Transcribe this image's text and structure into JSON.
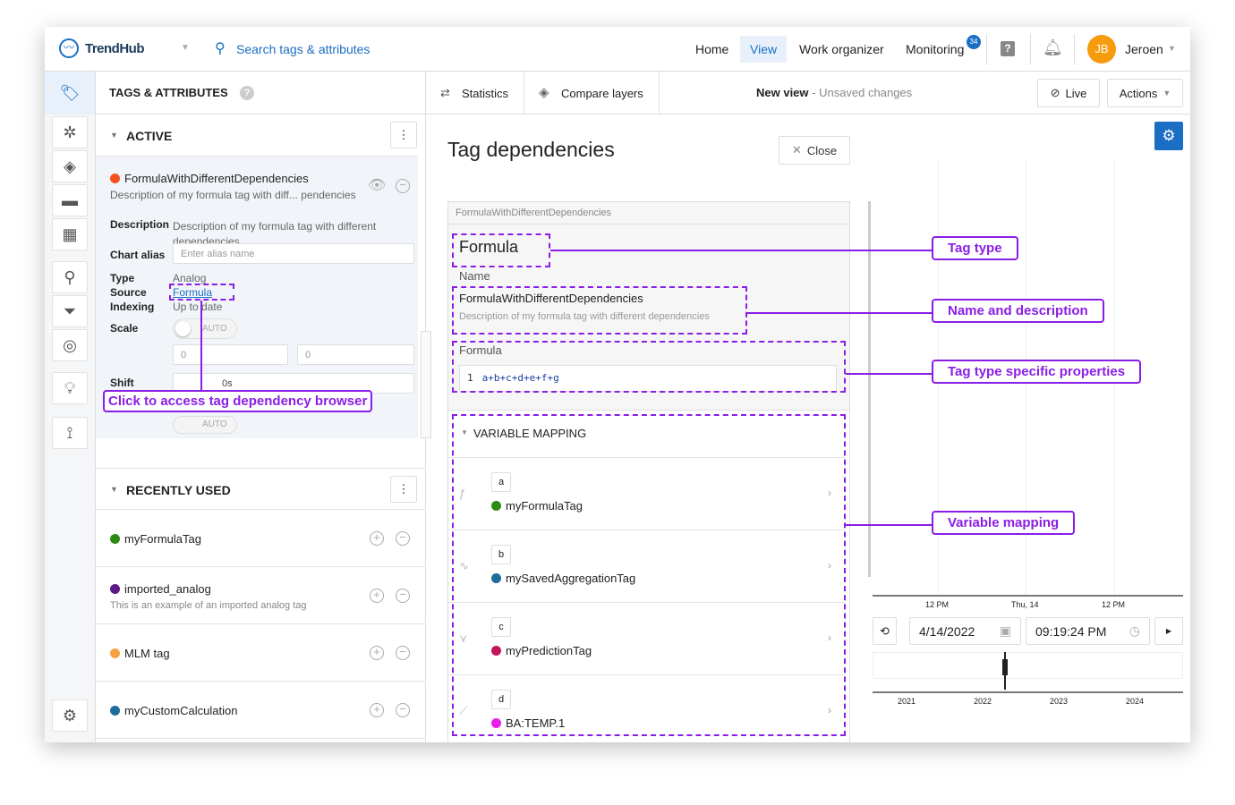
{
  "app": {
    "name": "TrendHub"
  },
  "search": {
    "placeholder": "Search tags & attributes"
  },
  "nav": {
    "items": [
      "Home",
      "View",
      "Work organizer",
      "Monitoring"
    ],
    "monitoring_badge": "34",
    "user_initials": "JB",
    "user_name": "Jeroen"
  },
  "colors": {
    "accent": "#1a6fc4",
    "annotation": "#8a1ee6",
    "avatar": "#f59b0c"
  },
  "panel": {
    "title": "TAGS & ATTRIBUTES"
  },
  "toolbar": {
    "statistics": "Statistics",
    "compare": "Compare layers",
    "view_name": "New view",
    "unsaved": " - Unsaved changes",
    "live": "Live",
    "actions": "Actions"
  },
  "active": {
    "header": "ACTIVE",
    "tag": {
      "name": "FormulaWithDifferentDependencies",
      "short_desc": "Description of my formula tag with diff... pendencies",
      "color": "#f4511e",
      "description_label": "Description",
      "description": "Description of my formula tag with different dependencies",
      "alias_label": "Chart alias",
      "alias_placeholder": "Enter alias name",
      "type_label": "Type",
      "type": "Analog",
      "source_label": "Source",
      "source": "Formula",
      "indexing_label": "Indexing",
      "indexing": "Up to date",
      "scale_label": "Scale",
      "scale_toggle": "AUTO",
      "scale_min": "0",
      "scale_max": "0",
      "shift_label": "Shift",
      "shift_value": "0s",
      "auto2": "AUTO"
    }
  },
  "recent": {
    "header": "RECENTLY USED",
    "items": [
      {
        "name": "myFormulaTag",
        "desc": "",
        "color": "#2e8b12"
      },
      {
        "name": "imported_analog",
        "desc": "This is an example of an imported analog tag",
        "color": "#5c1a8a"
      },
      {
        "name": "MLM tag",
        "desc": "",
        "color": "#f4a340"
      },
      {
        "name": "myCustomCalculation",
        "desc": "",
        "color": "#1f6b9c"
      }
    ]
  },
  "deps": {
    "title": "Tag dependencies",
    "close": "Close",
    "breadcrumb": "FormulaWithDifferentDependencies",
    "type": "Formula",
    "name_label": "Name",
    "name": "FormulaWithDifferentDependencies",
    "description": "Description of my formula tag with different dependencies",
    "formula_label": "Formula",
    "formula_line": "1",
    "formula": "a+b+c+d+e+f+g",
    "mapping_header": "VARIABLE MAPPING",
    "variables": [
      {
        "var": "a",
        "tag": "myFormulaTag",
        "color": "#2e8b12",
        "icon": "formula-icon"
      },
      {
        "var": "b",
        "tag": "mySavedAggregationTag",
        "color": "#1f6b9c",
        "icon": "aggregation-icon"
      },
      {
        "var": "c",
        "tag": "myPredictionTag",
        "color": "#c2185b",
        "icon": "prediction-icon"
      },
      {
        "var": "d",
        "tag": "BA:TEMP.1",
        "color": "#e91ee9",
        "icon": "trend-icon"
      }
    ]
  },
  "annotations": {
    "click": "Click to access tag dependency browser",
    "tag_type": "Tag type",
    "name_desc": "Name and description",
    "specific": "Tag type specific properties",
    "mapping": "Variable mapping"
  },
  "chart": {
    "ticks_top": [
      "12 PM",
      "Thu, 14",
      "12 PM"
    ],
    "date": "4/14/2022",
    "time": "09:19:24 PM",
    "years": [
      "2021",
      "2022",
      "2023",
      "2024"
    ]
  }
}
